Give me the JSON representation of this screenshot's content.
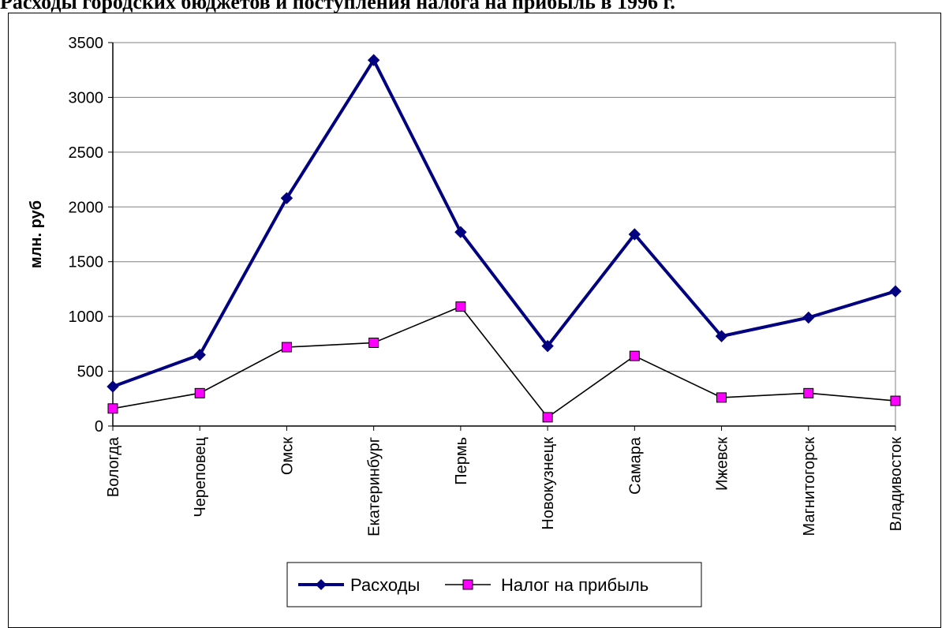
{
  "chart_data": {
    "type": "line",
    "title": "Расходы городских бюджетов и поступления налога на прибыль в 1996 г.",
    "xlabel": "",
    "ylabel": "млн. руб",
    "ylim": [
      0,
      3500
    ],
    "yticks": [
      0,
      500,
      1000,
      1500,
      2000,
      2500,
      3000,
      3500
    ],
    "grid": true,
    "legend_position": "bottom",
    "categories": [
      "Вологда",
      "Череповец",
      "Омск",
      "Екатеринбург",
      "Пермь",
      "Новокузнецк",
      "Самара",
      "Ижевск",
      "Магнитогорск",
      "Владивосток"
    ],
    "series": [
      {
        "name": "Расходы",
        "values": [
          360,
          650,
          2080,
          3340,
          1770,
          730,
          1750,
          820,
          990,
          1230
        ],
        "color": "#000080",
        "marker": "diamond"
      },
      {
        "name": "Налог на прибыль",
        "values": [
          160,
          300,
          720,
          760,
          1090,
          80,
          640,
          260,
          300,
          230
        ],
        "color": "#000000",
        "marker_fill": "#ff00ff",
        "marker": "square"
      }
    ]
  }
}
